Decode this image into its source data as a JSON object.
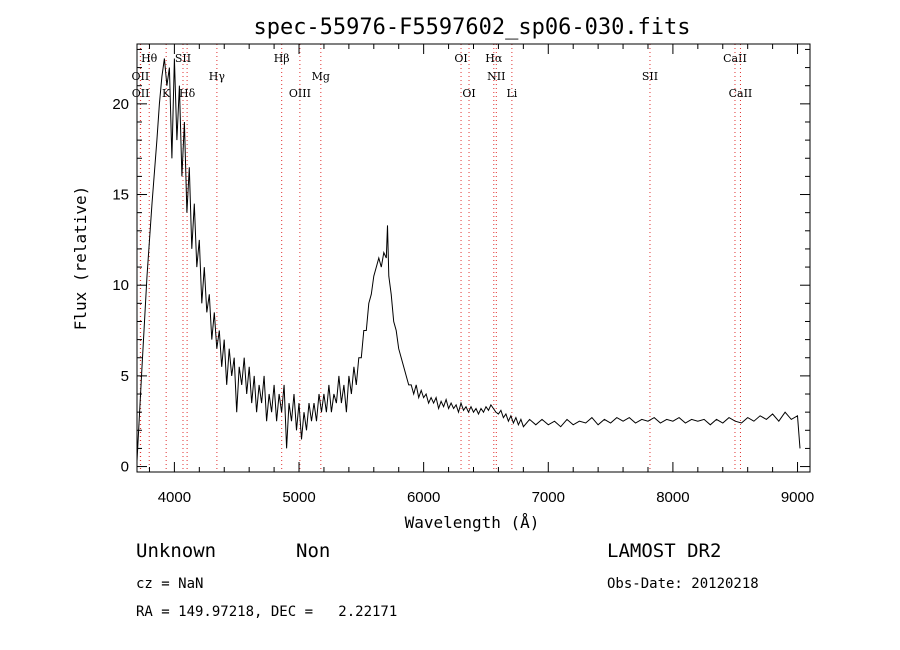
{
  "chart_data": {
    "type": "line",
    "title": "spec-55976-F5597602_sp06-030.fits",
    "xlabel": "Wavelength (Å)",
    "ylabel": "Flux (relative)",
    "xlim": [
      3700,
      9100
    ],
    "ylim": [
      -0.3,
      23.3
    ],
    "xticks": [
      4000,
      5000,
      6000,
      7000,
      8000,
      9000
    ],
    "yticks": [
      0,
      5,
      10,
      15,
      20
    ],
    "grid": false,
    "series": [
      {
        "color": "#000000",
        "points": [
          [
            3700,
            0.3
          ],
          [
            3740,
            5.5
          ],
          [
            3780,
            10.5
          ],
          [
            3820,
            14.5
          ],
          [
            3860,
            18.0
          ],
          [
            3880,
            20.0
          ],
          [
            3900,
            21.5
          ],
          [
            3920,
            22.5
          ],
          [
            3940,
            21.0
          ],
          [
            3960,
            22.0
          ],
          [
            3980,
            17.0
          ],
          [
            4000,
            22.5
          ],
          [
            4020,
            18.0
          ],
          [
            4040,
            21.0
          ],
          [
            4060,
            16.0
          ],
          [
            4080,
            19.0
          ],
          [
            4100,
            14.0
          ],
          [
            4120,
            16.5
          ],
          [
            4140,
            12.0
          ],
          [
            4160,
            14.5
          ],
          [
            4180,
            11.0
          ],
          [
            4200,
            12.5
          ],
          [
            4220,
            9.0
          ],
          [
            4240,
            11.0
          ],
          [
            4260,
            8.5
          ],
          [
            4280,
            9.5
          ],
          [
            4300,
            7.0
          ],
          [
            4320,
            8.5
          ],
          [
            4340,
            6.5
          ],
          [
            4360,
            7.5
          ],
          [
            4380,
            5.5
          ],
          [
            4400,
            7.0
          ],
          [
            4420,
            4.5
          ],
          [
            4440,
            6.5
          ],
          [
            4460,
            5.0
          ],
          [
            4480,
            6.0
          ],
          [
            4500,
            3.0
          ],
          [
            4520,
            5.5
          ],
          [
            4540,
            4.5
          ],
          [
            4560,
            6.0
          ],
          [
            4580,
            4.0
          ],
          [
            4600,
            5.5
          ],
          [
            4620,
            3.5
          ],
          [
            4640,
            5.0
          ],
          [
            4660,
            3.0
          ],
          [
            4680,
            4.5
          ],
          [
            4700,
            3.5
          ],
          [
            4720,
            5.0
          ],
          [
            4740,
            2.5
          ],
          [
            4760,
            4.0
          ],
          [
            4780,
            3.0
          ],
          [
            4800,
            4.5
          ],
          [
            4820,
            2.5
          ],
          [
            4840,
            4.0
          ],
          [
            4860,
            3.0
          ],
          [
            4880,
            4.5
          ],
          [
            4900,
            1.0
          ],
          [
            4920,
            3.5
          ],
          [
            4940,
            2.5
          ],
          [
            4960,
            4.0
          ],
          [
            4980,
            2.0
          ],
          [
            5000,
            3.5
          ],
          [
            5020,
            1.5
          ],
          [
            5040,
            3.0
          ],
          [
            5060,
            2.0
          ],
          [
            5080,
            3.5
          ],
          [
            5100,
            2.5
          ],
          [
            5120,
            3.5
          ],
          [
            5140,
            2.5
          ],
          [
            5160,
            4.0
          ],
          [
            5180,
            3.0
          ],
          [
            5200,
            4.0
          ],
          [
            5220,
            3.0
          ],
          [
            5240,
            4.5
          ],
          [
            5260,
            3.0
          ],
          [
            5280,
            4.0
          ],
          [
            5300,
            3.5
          ],
          [
            5320,
            5.0
          ],
          [
            5340,
            3.5
          ],
          [
            5360,
            4.5
          ],
          [
            5380,
            3.0
          ],
          [
            5400,
            5.0
          ],
          [
            5420,
            4.0
          ],
          [
            5440,
            5.5
          ],
          [
            5460,
            4.5
          ],
          [
            5480,
            6.0
          ],
          [
            5500,
            6.0
          ],
          [
            5520,
            7.5
          ],
          [
            5540,
            7.5
          ],
          [
            5560,
            9.0
          ],
          [
            5580,
            9.5
          ],
          [
            5600,
            10.5
          ],
          [
            5620,
            11.0
          ],
          [
            5640,
            11.5
          ],
          [
            5660,
            11.0
          ],
          [
            5680,
            11.8
          ],
          [
            5700,
            11.5
          ],
          [
            5710,
            13.3
          ],
          [
            5720,
            10.5
          ],
          [
            5740,
            9.5
          ],
          [
            5760,
            8.0
          ],
          [
            5780,
            7.5
          ],
          [
            5800,
            6.5
          ],
          [
            5820,
            6.0
          ],
          [
            5840,
            5.5
          ],
          [
            5860,
            5.0
          ],
          [
            5880,
            4.5
          ],
          [
            5900,
            4.5
          ],
          [
            5920,
            4.0
          ],
          [
            5940,
            4.5
          ],
          [
            5960,
            3.8
          ],
          [
            5980,
            4.2
          ],
          [
            6000,
            3.8
          ],
          [
            6020,
            4.0
          ],
          [
            6040,
            3.5
          ],
          [
            6060,
            3.8
          ],
          [
            6080,
            3.5
          ],
          [
            6100,
            3.8
          ],
          [
            6120,
            3.2
          ],
          [
            6140,
            3.6
          ],
          [
            6160,
            3.3
          ],
          [
            6180,
            3.7
          ],
          [
            6200,
            3.2
          ],
          [
            6220,
            3.5
          ],
          [
            6240,
            3.2
          ],
          [
            6260,
            3.4
          ],
          [
            6280,
            3.0
          ],
          [
            6300,
            3.5
          ],
          [
            6320,
            3.1
          ],
          [
            6340,
            3.3
          ],
          [
            6360,
            3.0
          ],
          [
            6380,
            3.3
          ],
          [
            6400,
            3.0
          ],
          [
            6420,
            3.2
          ],
          [
            6440,
            2.9
          ],
          [
            6460,
            3.2
          ],
          [
            6480,
            3.0
          ],
          [
            6500,
            3.3
          ],
          [
            6520,
            3.1
          ],
          [
            6540,
            3.4
          ],
          [
            6560,
            3.2
          ],
          [
            6580,
            3.0
          ],
          [
            6600,
            2.9
          ],
          [
            6620,
            3.1
          ],
          [
            6640,
            2.7
          ],
          [
            6660,
            2.9
          ],
          [
            6680,
            2.5
          ],
          [
            6700,
            2.8
          ],
          [
            6720,
            2.4
          ],
          [
            6740,
            2.7
          ],
          [
            6760,
            2.3
          ],
          [
            6780,
            2.6
          ],
          [
            6800,
            2.2
          ],
          [
            6850,
            2.6
          ],
          [
            6900,
            2.3
          ],
          [
            6950,
            2.6
          ],
          [
            7000,
            2.3
          ],
          [
            7050,
            2.5
          ],
          [
            7100,
            2.2
          ],
          [
            7150,
            2.6
          ],
          [
            7200,
            2.3
          ],
          [
            7250,
            2.5
          ],
          [
            7300,
            2.4
          ],
          [
            7350,
            2.7
          ],
          [
            7400,
            2.3
          ],
          [
            7450,
            2.6
          ],
          [
            7500,
            2.4
          ],
          [
            7550,
            2.7
          ],
          [
            7600,
            2.5
          ],
          [
            7650,
            2.7
          ],
          [
            7700,
            2.4
          ],
          [
            7750,
            2.6
          ],
          [
            7800,
            2.5
          ],
          [
            7850,
            2.7
          ],
          [
            7900,
            2.4
          ],
          [
            7950,
            2.6
          ],
          [
            8000,
            2.5
          ],
          [
            8050,
            2.7
          ],
          [
            8100,
            2.4
          ],
          [
            8150,
            2.6
          ],
          [
            8200,
            2.5
          ],
          [
            8250,
            2.6
          ],
          [
            8300,
            2.3
          ],
          [
            8350,
            2.6
          ],
          [
            8400,
            2.4
          ],
          [
            8450,
            2.7
          ],
          [
            8500,
            2.5
          ],
          [
            8550,
            2.4
          ],
          [
            8600,
            2.7
          ],
          [
            8650,
            2.5
          ],
          [
            8700,
            2.8
          ],
          [
            8750,
            2.6
          ],
          [
            8800,
            2.9
          ],
          [
            8850,
            2.5
          ],
          [
            8900,
            3.0
          ],
          [
            8950,
            2.6
          ],
          [
            9000,
            2.8
          ],
          [
            9020,
            1.0
          ]
        ]
      }
    ],
    "line_markers": [
      {
        "label": "Hθ",
        "x": 3798,
        "row": 0
      },
      {
        "label": "OII",
        "x": 3727,
        "row": 1
      },
      {
        "label": "OII",
        "x": 3729,
        "row": 2
      },
      {
        "label": "K",
        "x": 3934,
        "row": 2
      },
      {
        "label": "SII",
        "x": 4069,
        "row": 0
      },
      {
        "label": "Hδ",
        "x": 4102,
        "row": 2
      },
      {
        "label": "Hγ",
        "x": 4341,
        "row": 1
      },
      {
        "label": "Hβ",
        "x": 4861,
        "row": 0
      },
      {
        "label": "OIII",
        "x": 5007,
        "row": 2
      },
      {
        "label": "Mg",
        "x": 5175,
        "row": 1
      },
      {
        "label": "OI",
        "x": 6300,
        "row": 0
      },
      {
        "label": "OI",
        "x": 6364,
        "row": 2
      },
      {
        "label": "Hα",
        "x": 6563,
        "row": 0
      },
      {
        "label": "NII",
        "x": 6583,
        "row": 1
      },
      {
        "label": "Li",
        "x": 6708,
        "row": 2
      },
      {
        "label": "SII",
        "x": 7816,
        "row": 1
      },
      {
        "label": "CaII",
        "x": 8498,
        "row": 0
      },
      {
        "label": "CaII",
        "x": 8542,
        "row": 2
      }
    ]
  },
  "info": {
    "class": "Unknown",
    "subclass": "Non",
    "survey": "LAMOST DR2",
    "cz": "cz = NaN",
    "obs_date": "Obs-Date: 20120218",
    "coords": "RA = 149.97218, DEC =   2.22171"
  }
}
